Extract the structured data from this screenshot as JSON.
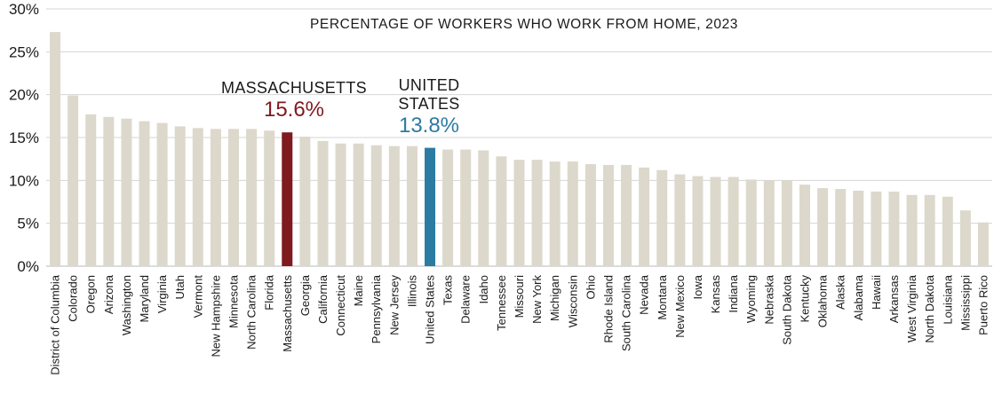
{
  "chart_data": {
    "type": "bar",
    "title": "PERCENTAGE OF WORKERS WHO WORK FROM HOME, 2023",
    "xlabel": "",
    "ylabel": "",
    "ylim": [
      0,
      30
    ],
    "y_ticks": [
      "0%",
      "5%",
      "10%",
      "15%",
      "20%",
      "25%",
      "30%"
    ],
    "grid": true,
    "colors": {
      "default": "#dcd8cb",
      "massachusetts": "#7f1a1f",
      "united_states": "#2b7ba3",
      "grid": "#d4d4d4"
    },
    "categories": [
      "District of Columbia",
      "Colorado",
      "Oregon",
      "Arizona",
      "Washington",
      "Maryland",
      "Virginia",
      "Utah",
      "Vermont",
      "New Hampshire",
      "Minnesota",
      "North Carolina",
      "Florida",
      "Massachusetts",
      "Georgia",
      "California",
      "Connecticut",
      "Maine",
      "Pennsylvania",
      "New Jersey",
      "Illinois",
      "United States",
      "Texas",
      "Delaware",
      "Idaho",
      "Tennessee",
      "Missouri",
      "New York",
      "Michigan",
      "Wisconsin",
      "Ohio",
      "Rhode Island",
      "South Carolina",
      "Nevada",
      "Montana",
      "New Mexico",
      "Iowa",
      "Kansas",
      "Indiana",
      "Wyoming",
      "Nebraska",
      "South Dakota",
      "Kentucky",
      "Oklahoma",
      "Alaska",
      "Alabama",
      "Hawaii",
      "Arkansas",
      "West Virginia",
      "North Dakota",
      "Louisiana",
      "Mississippi",
      "Puerto Rico"
    ],
    "values": [
      27.3,
      19.9,
      17.7,
      17.4,
      17.2,
      16.9,
      16.7,
      16.3,
      16.1,
      16.0,
      16.0,
      16.0,
      15.8,
      15.6,
      15.1,
      14.6,
      14.3,
      14.3,
      14.1,
      14.0,
      14.0,
      13.8,
      13.6,
      13.6,
      13.5,
      12.8,
      12.4,
      12.4,
      12.2,
      12.2,
      11.9,
      11.8,
      11.8,
      11.5,
      11.2,
      10.7,
      10.5,
      10.4,
      10.4,
      10.1,
      10.0,
      10.0,
      9.5,
      9.1,
      9.0,
      8.8,
      8.7,
      8.7,
      8.3,
      8.3,
      8.1,
      6.5,
      5.1
    ],
    "annotations": {
      "massachusetts": {
        "name": "MASSACHUSETTS",
        "value": "15.6%"
      },
      "united_states": {
        "name_line1": "UNITED",
        "name_line2": "STATES",
        "value": "13.8%"
      }
    }
  }
}
